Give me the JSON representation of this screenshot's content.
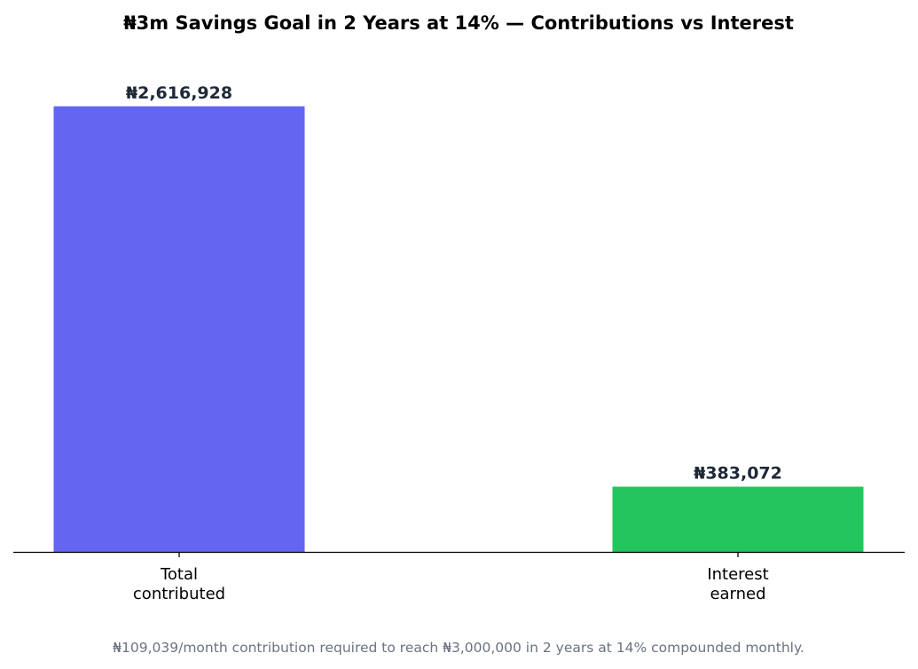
{
  "chart_data": {
    "type": "bar",
    "title": "₦3m Savings Goal in 2 Years at 14% — Contributions vs Interest",
    "categories": [
      [
        "Total",
        "contributed"
      ],
      [
        "Interest",
        "earned"
      ]
    ],
    "values": [
      2616928,
      383072
    ],
    "value_labels": [
      "₦2,616,928",
      "₦383,072"
    ],
    "colors": [
      "#6366f1",
      "#22c55e"
    ],
    "xlabel": "",
    "ylabel": "",
    "ylim": [
      0,
      2840000
    ],
    "y_axis_visible": false,
    "grid": false,
    "footnote": "₦109,039/month contribution required to reach ₦3,000,000 in 2 years at 14% compounded monthly."
  }
}
